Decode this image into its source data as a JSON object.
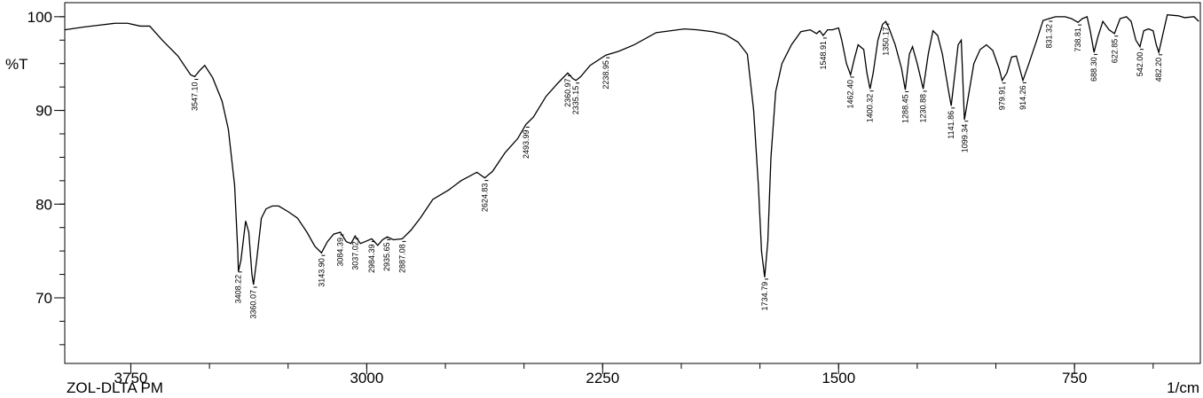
{
  "chart_data": {
    "type": "line",
    "footer_left": "ZOL-DLTA PM",
    "ylabel": "%T",
    "xlabel": "1/cm",
    "color": "#000000",
    "xlim": [
      3960,
      350
    ],
    "ylim": [
      63,
      101.5
    ],
    "xticks": [
      3750,
      3000,
      2250,
      1500,
      750
    ],
    "xticks_minor": [
      3750,
      3500,
      3250,
      3000,
      2750,
      2500,
      2250,
      2000,
      1750,
      1500,
      1250,
      1000,
      750,
      500
    ],
    "yticks": [
      70,
      80,
      90,
      100
    ],
    "yticks_minor": [
      65,
      67.5,
      70,
      72.5,
      75,
      77.5,
      80,
      82.5,
      85,
      87.5,
      90,
      92.5,
      95,
      97.5,
      100
    ],
    "x": [
      3960,
      3900,
      3850,
      3800,
      3760,
      3720,
      3690,
      3650,
      3600,
      3560,
      3547,
      3530,
      3515,
      3490,
      3460,
      3440,
      3420,
      3410,
      3408,
      3400,
      3385,
      3375,
      3365,
      3360,
      3350,
      3335,
      3320,
      3300,
      3280,
      3250,
      3220,
      3190,
      3165,
      3144,
      3125,
      3105,
      3084,
      3065,
      3050,
      3037,
      3020,
      3005,
      2984,
      2965,
      2950,
      2935,
      2915,
      2887,
      2860,
      2830,
      2790,
      2740,
      2700,
      2650,
      2625,
      2600,
      2560,
      2520,
      2494,
      2470,
      2430,
      2390,
      2361,
      2345,
      2335,
      2320,
      2290,
      2240,
      2200,
      2150,
      2080,
      1990,
      1950,
      1900,
      1860,
      1820,
      1790,
      1770,
      1755,
      1745,
      1735,
      1725,
      1715,
      1700,
      1680,
      1650,
      1620,
      1590,
      1570,
      1560,
      1549,
      1535,
      1520,
      1500,
      1490,
      1475,
      1462,
      1450,
      1438,
      1420,
      1410,
      1400,
      1390,
      1375,
      1360,
      1350,
      1340,
      1320,
      1300,
      1288,
      1275,
      1265,
      1250,
      1231,
      1215,
      1200,
      1185,
      1170,
      1150,
      1142,
      1130,
      1120,
      1110,
      1100,
      1090,
      1070,
      1050,
      1030,
      1010,
      990,
      980,
      965,
      950,
      935,
      914,
      895,
      870,
      850,
      831,
      810,
      780,
      760,
      739,
      725,
      710,
      700,
      688,
      676,
      660,
      640,
      623,
      605,
      585,
      570,
      555,
      542,
      530,
      515,
      500,
      490,
      482,
      470,
      455,
      420,
      400,
      370,
      355
    ],
    "values": [
      98.6,
      98.9,
      99.1,
      99.3,
      99.3,
      99.0,
      99.0,
      97.5,
      95.8,
      93.8,
      93.6,
      94.3,
      94.8,
      93.5,
      91.0,
      88,
      82,
      75,
      72.8,
      74,
      78.2,
      77.0,
      72.5,
      71.4,
      74,
      78.5,
      79.5,
      79.8,
      79.8,
      79.2,
      78.5,
      77,
      75.5,
      74.8,
      76,
      76.8,
      77.0,
      76.0,
      75.8,
      76.6,
      75.8,
      76.0,
      76.3,
      75.6,
      76.2,
      76.5,
      76.2,
      76.3,
      77.2,
      78.5,
      80.5,
      81.5,
      82.5,
      83.4,
      82.8,
      83.5,
      85.5,
      87,
      88.5,
      89.3,
      91.5,
      93.0,
      94.0,
      93.4,
      93.2,
      93.6,
      94.8,
      95.9,
      96.3,
      97.0,
      98.3,
      98.7,
      98.6,
      98.4,
      98.1,
      97.3,
      96.0,
      90,
      82,
      75,
      72.2,
      76,
      85,
      92,
      95.0,
      97.0,
      98.4,
      98.6,
      98.2,
      98.5,
      98.0,
      98.6,
      98.6,
      98.8,
      97.5,
      95,
      93.8,
      95.5,
      97,
      96.5,
      94,
      92.3,
      94,
      97.5,
      99.2,
      99.5,
      98.8,
      97,
      94.5,
      92.2,
      96,
      96.8,
      95.0,
      92.3,
      96,
      98.5,
      98.0,
      96,
      92,
      90.5,
      94,
      97,
      97.5,
      89.0,
      91,
      95,
      96.5,
      97,
      96.4,
      94.5,
      93.2,
      94,
      95.7,
      95.8,
      93.2,
      95,
      97.5,
      99.6,
      99.8,
      100,
      100,
      99.8,
      99.4,
      99.8,
      100,
      98.5,
      96.2,
      97.8,
      99.5,
      98.6,
      98.2,
      99.8,
      100,
      99.5,
      97.5,
      96.8,
      98.5,
      98.7,
      98.5,
      97,
      96.2,
      98,
      100.2,
      100.1,
      99.9,
      100,
      99.5
    ],
    "peaks": [
      {
        "value": 3547.1,
        "label": "3547.10"
      },
      {
        "value": 3408.22,
        "label": "3408.22"
      },
      {
        "value": 3360.07,
        "label": "3360.07"
      },
      {
        "value": 3143.9,
        "label": "3143.90"
      },
      {
        "value": 3084.39,
        "label": "3084.39"
      },
      {
        "value": 3037.02,
        "label": "3037.02"
      },
      {
        "value": 2984.39,
        "label": "2984.39"
      },
      {
        "value": 2935.65,
        "label": "2935.65"
      },
      {
        "value": 2887.08,
        "label": "2887.08"
      },
      {
        "value": 2624.83,
        "label": "2624.83"
      },
      {
        "value": 2493.99,
        "label": "2493.99"
      },
      {
        "value": 2360.97,
        "label": "2360.97"
      },
      {
        "value": 2335.15,
        "label": "2335.15"
      },
      {
        "value": 2238.95,
        "label": "2238.95"
      },
      {
        "value": 1734.79,
        "label": "1734.79"
      },
      {
        "value": 1548.91,
        "label": "1548.91"
      },
      {
        "value": 1462.4,
        "label": "1462.40"
      },
      {
        "value": 1400.32,
        "label": "1400.32"
      },
      {
        "value": 1350.17,
        "label": "1350.17"
      },
      {
        "value": 1288.45,
        "label": "1288.45"
      },
      {
        "value": 1230.88,
        "label": "1230.88"
      },
      {
        "value": 1141.86,
        "label": "1141.86"
      },
      {
        "value": 1099.34,
        "label": "1099.34"
      },
      {
        "value": 979.91,
        "label": "979.91"
      },
      {
        "value": 914.26,
        "label": "914.26"
      },
      {
        "value": 831.32,
        "label": "831.32"
      },
      {
        "value": 738.81,
        "label": "738.81"
      },
      {
        "value": 688.3,
        "label": "688.30"
      },
      {
        "value": 622.85,
        "label": "622.85"
      },
      {
        "value": 542.0,
        "label": "542.00"
      },
      {
        "value": 482.2,
        "label": "482.20"
      }
    ]
  }
}
